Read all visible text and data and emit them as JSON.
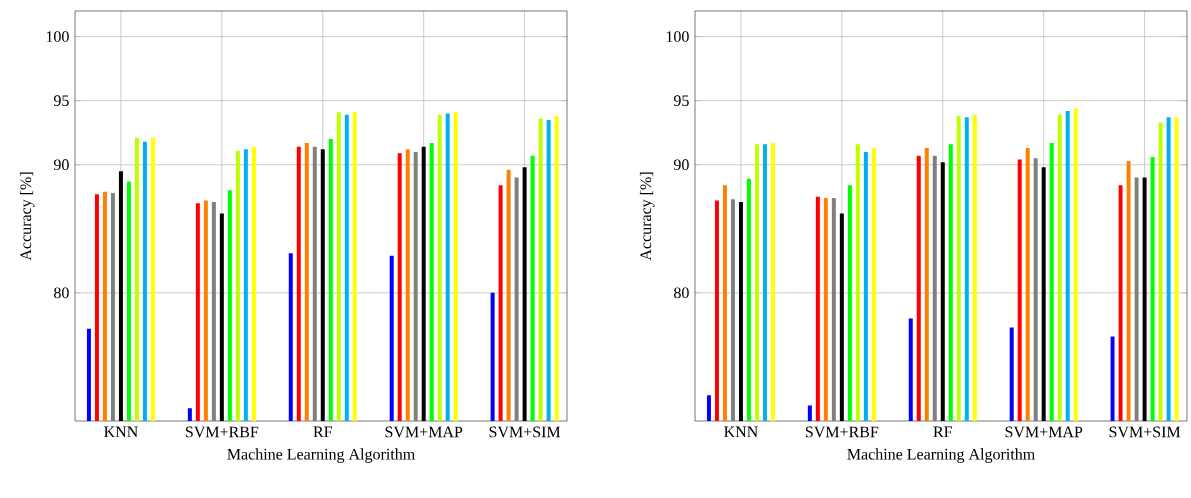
{
  "chart_data": [
    {
      "type": "bar",
      "categories": [
        "KNN",
        "SVM+RBF",
        "RF",
        "SVM+MAP",
        "SVM+SIM"
      ],
      "xlabel": "Machine Learning Algorithm",
      "ylabel": "Accuracy [%]",
      "ylim": [
        70,
        102
      ],
      "yticks": [
        80,
        90,
        95,
        100
      ],
      "grid": true,
      "series": [
        {
          "color": "#0000ff",
          "values": [
            77.2,
            71.0,
            83.1,
            82.9,
            80.0
          ]
        },
        {
          "color": "#ff0000",
          "values": [
            87.7,
            87.0,
            91.4,
            90.9,
            88.4
          ]
        },
        {
          "color": "#ff8000",
          "values": [
            87.9,
            87.2,
            91.7,
            91.2,
            89.6
          ]
        },
        {
          "color": "#808080",
          "values": [
            87.8,
            87.1,
            91.4,
            91.0,
            89.0
          ]
        },
        {
          "color": "#000000",
          "values": [
            89.5,
            86.2,
            91.2,
            91.4,
            89.8
          ]
        },
        {
          "color": "#00ff00",
          "values": [
            88.7,
            88.0,
            92.0,
            91.7,
            90.7
          ]
        },
        {
          "color": "#bfff00",
          "values": [
            92.1,
            91.1,
            94.1,
            93.9,
            93.6
          ]
        },
        {
          "color": "#00b0f0",
          "values": [
            91.8,
            91.2,
            93.9,
            94.0,
            93.5
          ]
        },
        {
          "color": "#ffff00",
          "values": [
            92.1,
            91.4,
            94.1,
            94.1,
            93.8
          ]
        }
      ]
    },
    {
      "type": "bar",
      "categories": [
        "KNN",
        "SVM+RBF",
        "RF",
        "SVM+MAP",
        "SVM+SIM"
      ],
      "xlabel": "Machine Learning Algorithm",
      "ylabel": "Accuracy [%]",
      "ylim": [
        70,
        102
      ],
      "yticks": [
        80,
        90,
        95,
        100
      ],
      "grid": true,
      "series": [
        {
          "color": "#0000ff",
          "values": [
            72.0,
            71.2,
            78.0,
            77.3,
            76.6
          ]
        },
        {
          "color": "#ff0000",
          "values": [
            87.2,
            87.5,
            90.7,
            90.4,
            88.4
          ]
        },
        {
          "color": "#ff8000",
          "values": [
            88.4,
            87.4,
            91.3,
            91.3,
            90.3
          ]
        },
        {
          "color": "#808080",
          "values": [
            87.3,
            87.4,
            90.7,
            90.5,
            89.0
          ]
        },
        {
          "color": "#000000",
          "values": [
            87.1,
            86.2,
            90.2,
            89.8,
            89.0
          ]
        },
        {
          "color": "#00ff00",
          "values": [
            88.9,
            88.4,
            91.6,
            91.7,
            90.6
          ]
        },
        {
          "color": "#bfff00",
          "values": [
            91.6,
            91.6,
            93.8,
            93.9,
            93.3
          ]
        },
        {
          "color": "#00b0f0",
          "values": [
            91.6,
            91.0,
            93.7,
            94.2,
            93.7
          ]
        },
        {
          "color": "#ffff00",
          "values": [
            91.7,
            91.3,
            93.9,
            94.4,
            93.7
          ]
        }
      ]
    }
  ]
}
